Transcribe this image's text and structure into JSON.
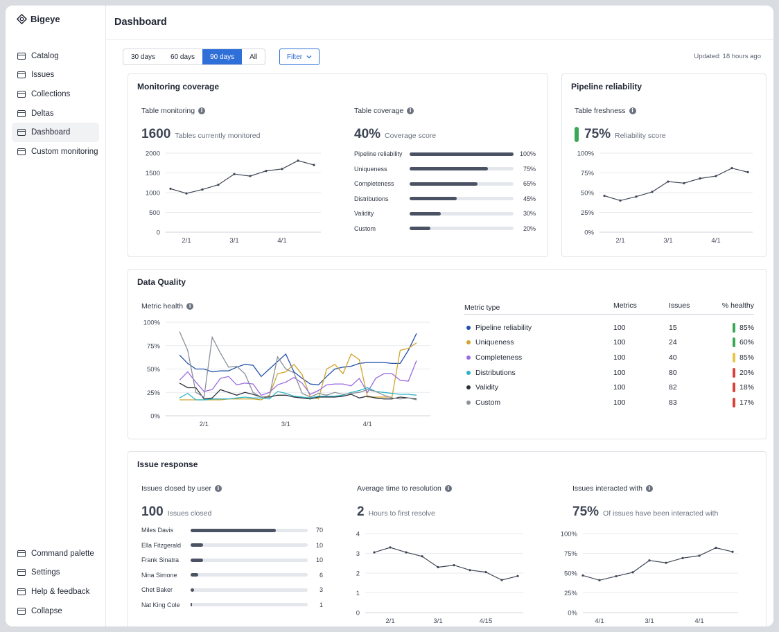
{
  "app": {
    "logo_text": "Bigeye"
  },
  "sidebar": {
    "items": [
      {
        "label": "Catalog",
        "icon": "folder-icon",
        "active": false
      },
      {
        "label": "Issues",
        "icon": "folder-icon",
        "active": false
      },
      {
        "label": "Collections",
        "icon": "folder-icon",
        "active": false
      },
      {
        "label": "Deltas",
        "icon": "folder-icon",
        "active": false
      },
      {
        "label": "Dashboard",
        "icon": "folder-icon",
        "active": true
      },
      {
        "label": "Custom monitoring",
        "icon": "folder-icon",
        "active": false
      }
    ],
    "bottom_items": [
      {
        "label": "Command palette",
        "icon": "folder-icon"
      },
      {
        "label": "Settings",
        "icon": "folder-icon"
      },
      {
        "label": "Help & feedback",
        "icon": "folder-icon"
      },
      {
        "label": "Collapse",
        "icon": "folder-icon"
      }
    ]
  },
  "header": {
    "title": "Dashboard"
  },
  "toolbar": {
    "ranges": [
      "30 days",
      "60 days",
      "90 days",
      "All"
    ],
    "selected_range": "90 days",
    "filter_label": "Filter",
    "updated": "Updated: 18 hours ago"
  },
  "colors": {
    "accent": "#2f6fd8",
    "good": "#3aa856",
    "warn": "#e8c547",
    "bad": "#d9433a"
  },
  "monitoring": {
    "title": "Monitoring coverage",
    "table_monitoring": {
      "label": "Table monitoring",
      "value": "1600",
      "caption": "Tables currently monitored"
    },
    "table_coverage": {
      "label": "Table coverage",
      "value": "40%",
      "caption": "Coverage score",
      "rows": [
        {
          "name": "Pipeline reliability",
          "pct": 100,
          "label": "100%"
        },
        {
          "name": "Uniqueness",
          "pct": 75,
          "label": "75%"
        },
        {
          "name": "Completeness",
          "pct": 65,
          "label": "65%"
        },
        {
          "name": "Distributions",
          "pct": 45,
          "label": "45%"
        },
        {
          "name": "Validity",
          "pct": 30,
          "label": "30%"
        },
        {
          "name": "Custom",
          "pct": 20,
          "label": "20%"
        }
      ]
    }
  },
  "pipeline": {
    "title": "Pipeline reliability",
    "label": "Table freshness",
    "value": "75%",
    "caption": "Reliability score"
  },
  "quality": {
    "title": "Data Quality",
    "metric_health_label": "Metric health",
    "table": {
      "headers": [
        "Metric type",
        "Metrics",
        "Issues",
        "% healthy"
      ],
      "rows": [
        {
          "name": "Pipeline reliability",
          "color": "#1f4fa8",
          "metrics": "100",
          "issues": "15",
          "healthy": "85%",
          "status": "#3aa856"
        },
        {
          "name": "Uniqueness",
          "color": "#d1a32a",
          "metrics": "100",
          "issues": "24",
          "healthy": "60%",
          "status": "#3aa856"
        },
        {
          "name": "Completeness",
          "color": "#9a6be0",
          "metrics": "100",
          "issues": "40",
          "healthy": "85%",
          "status": "#e8c547"
        },
        {
          "name": "Distributions",
          "color": "#2ab3c4",
          "metrics": "100",
          "issues": "80",
          "healthy": "20%",
          "status": "#d9433a"
        },
        {
          "name": "Validity",
          "color": "#2b2f38",
          "metrics": "100",
          "issues": "82",
          "healthy": "18%",
          "status": "#d9433a"
        },
        {
          "name": "Custom",
          "color": "#8a8f98",
          "metrics": "100",
          "issues": "83",
          "healthy": "17%",
          "status": "#d9433a"
        }
      ]
    }
  },
  "issues": {
    "title": "Issue response",
    "closed_by_user": {
      "label": "Issues closed by user",
      "value": "100",
      "caption": "Issues closed",
      "max": 100,
      "rows": [
        {
          "name": "Miles Davis",
          "value": 70
        },
        {
          "name": "Ella Fitzgerald",
          "value": 10
        },
        {
          "name": "Frank Sinatra",
          "value": 10
        },
        {
          "name": "Nina Simone",
          "value": 6
        },
        {
          "name": "Chet Baker",
          "value": 3
        },
        {
          "name": "Nat King Cole",
          "value": 1
        }
      ]
    },
    "avg_resolution": {
      "label": "Average time to resolution",
      "value": "2",
      "caption": "Hours to first resolve"
    },
    "interacted": {
      "label": "Issues interacted with",
      "value": "75%",
      "caption": "Of issues have been interacted with"
    }
  },
  "chart_data": [
    {
      "id": "table_monitoring",
      "type": "line",
      "x": [
        0,
        1,
        2,
        3,
        4,
        5,
        6,
        7,
        8,
        9
      ],
      "x_ticks": [
        {
          "at": 1,
          "label": "2/1"
        },
        {
          "at": 4,
          "label": "3/1"
        },
        {
          "at": 7,
          "label": "4/1"
        }
      ],
      "y_ticks": [
        0,
        500,
        1000,
        1500,
        2000
      ],
      "ylim": [
        0,
        2000
      ],
      "series": [
        {
          "values": [
            1100,
            980,
            1080,
            1200,
            1470,
            1420,
            1550,
            1600,
            1810,
            1700
          ],
          "color": "#3e4554"
        }
      ]
    },
    {
      "id": "table_freshness",
      "type": "line",
      "x": [
        0,
        1,
        2,
        3,
        4,
        5,
        6,
        7,
        8,
        9
      ],
      "x_ticks": [
        {
          "at": 1,
          "label": "2/1"
        },
        {
          "at": 4,
          "label": "3/1"
        },
        {
          "at": 7,
          "label": "4/1"
        }
      ],
      "y_ticks": [
        "0%",
        "25%",
        "50%",
        "75%",
        "100%"
      ],
      "ylim": [
        0,
        100
      ],
      "series": [
        {
          "values": [
            46,
            40,
            45,
            51,
            64,
            62,
            68,
            71,
            81,
            76
          ],
          "color": "#3e4554"
        }
      ]
    },
    {
      "id": "metric_health",
      "type": "line",
      "x_count": 30,
      "x_ticks": [
        {
          "at": 3,
          "label": "2/1"
        },
        {
          "at": 13,
          "label": "3/1"
        },
        {
          "at": 23,
          "label": "4/1"
        }
      ],
      "y_ticks": [
        "0%",
        "25%",
        "50%",
        "75%",
        "100%"
      ],
      "ylim": [
        0,
        100
      ],
      "series": [
        {
          "name": "Pipeline reliability",
          "color": "#1f4fa8",
          "values": [
            65,
            56,
            50,
            50,
            47,
            48,
            48,
            52,
            55,
            54,
            42,
            50,
            58,
            66,
            47,
            40,
            34,
            33,
            42,
            50,
            52,
            53,
            56,
            57,
            57,
            57,
            56,
            56,
            70,
            88
          ]
        },
        {
          "name": "Uniqueness",
          "color": "#d1a32a",
          "values": [
            17,
            17,
            17,
            17,
            17,
            17,
            18,
            18,
            18,
            18,
            17,
            22,
            45,
            47,
            55,
            44,
            20,
            18,
            50,
            55,
            45,
            66,
            60,
            20,
            20,
            20,
            20,
            70,
            72,
            78
          ]
        },
        {
          "name": "Completeness",
          "color": "#9a6be0",
          "values": [
            38,
            47,
            36,
            26,
            28,
            40,
            42,
            33,
            35,
            34,
            22,
            25,
            33,
            36,
            41,
            35,
            23,
            27,
            33,
            34,
            34,
            32,
            40,
            25,
            40,
            45,
            45,
            38,
            37,
            59
          ]
        },
        {
          "name": "Distributions",
          "color": "#2ab3c4",
          "values": [
            19,
            24,
            17,
            17,
            18,
            18,
            18,
            19,
            20,
            19,
            19,
            18,
            26,
            24,
            21,
            20,
            19,
            21,
            21,
            21,
            22,
            25,
            27,
            30,
            26,
            25,
            24,
            23,
            23,
            22
          ]
        },
        {
          "name": "Validity",
          "color": "#2b2f38",
          "values": [
            35,
            30,
            30,
            18,
            19,
            28,
            25,
            22,
            25,
            23,
            20,
            20,
            22,
            22,
            20,
            19,
            18,
            20,
            20,
            20,
            21,
            23,
            19,
            21,
            19,
            18,
            18,
            20,
            19,
            18
          ]
        },
        {
          "name": "Custom",
          "color": "#8a8f98",
          "values": [
            90,
            70,
            25,
            20,
            84,
            67,
            52,
            53,
            45,
            25,
            20,
            21,
            63,
            50,
            46,
            24,
            20,
            24,
            22,
            25,
            23,
            24,
            25,
            28,
            26,
            22,
            19,
            18,
            19,
            17
          ]
        }
      ]
    },
    {
      "id": "avg_resolution",
      "type": "line",
      "x": [
        0,
        1,
        2,
        3,
        4,
        5,
        6,
        7,
        8,
        9
      ],
      "x_ticks": [
        {
          "at": 1,
          "label": "2/1"
        },
        {
          "at": 4,
          "label": "3/1"
        },
        {
          "at": 7,
          "label": "4/15"
        }
      ],
      "y_ticks": [
        0,
        1,
        2,
        3,
        4
      ],
      "ylim": [
        0,
        4
      ],
      "series": [
        {
          "values": [
            3.05,
            3.3,
            3.05,
            2.85,
            2.3,
            2.4,
            2.15,
            2.05,
            1.65,
            1.85
          ],
          "color": "#3e4554"
        }
      ]
    },
    {
      "id": "interacted",
      "type": "line",
      "x": [
        0,
        1,
        2,
        3,
        4,
        5,
        6,
        7,
        8,
        9
      ],
      "x_ticks": [
        {
          "at": 1,
          "label": "4/1"
        },
        {
          "at": 4,
          "label": "3/1"
        },
        {
          "at": 7,
          "label": "4/1"
        }
      ],
      "y_ticks": [
        "0%",
        "25%",
        "50%",
        "75%",
        "100%"
      ],
      "ylim": [
        0,
        100
      ],
      "series": [
        {
          "values": [
            47,
            41,
            46,
            51,
            66,
            63,
            69,
            72,
            82,
            77
          ],
          "color": "#3e4554"
        }
      ]
    }
  ]
}
